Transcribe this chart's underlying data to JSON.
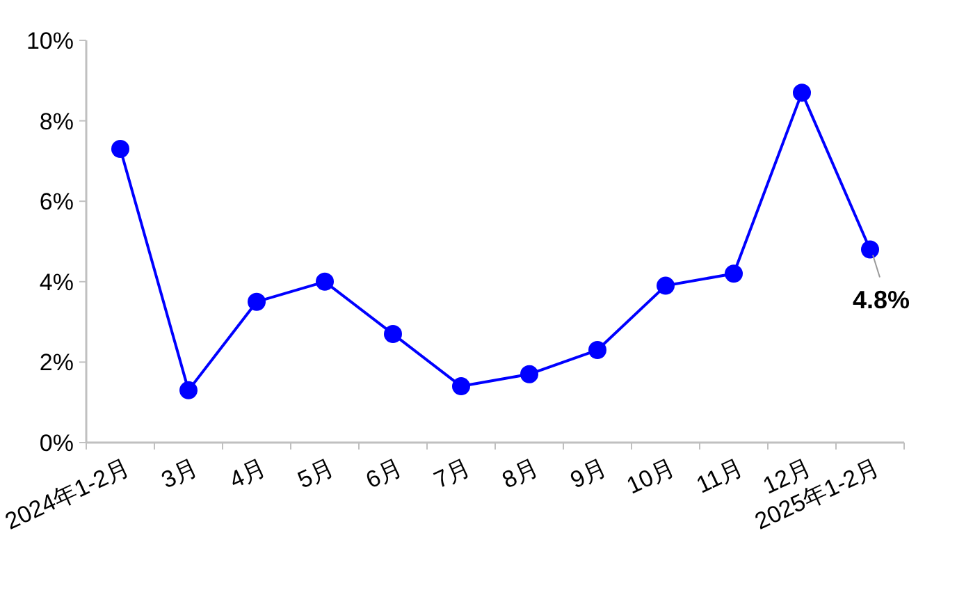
{
  "chart_data": {
    "type": "line",
    "categories": [
      "2024年1-2月",
      "3月",
      "4月",
      "5月",
      "6月",
      "7月",
      "8月",
      "9月",
      "10月",
      "11月",
      "12月",
      "2025年1-2月"
    ],
    "series": [
      {
        "color": "#0000ff",
        "values": [
          7.3,
          1.3,
          3.5,
          4.0,
          2.7,
          1.4,
          1.7,
          2.3,
          3.9,
          4.2,
          8.7,
          4.8
        ],
        "value_labels": [
          null,
          null,
          null,
          null,
          null,
          null,
          null,
          null,
          null,
          null,
          null,
          "4.8%"
        ]
      }
    ],
    "ylim": [
      0,
      10
    ],
    "yticks": [
      {
        "value": 0,
        "label": "0%"
      },
      {
        "value": 2,
        "label": "2%"
      },
      {
        "value": 4,
        "label": "4%"
      },
      {
        "value": 6,
        "label": "6%"
      },
      {
        "value": 8,
        "label": "8%"
      },
      {
        "value": 10,
        "label": "10%"
      }
    ],
    "grid": false,
    "marker": "circle",
    "line_style": "solid"
  }
}
